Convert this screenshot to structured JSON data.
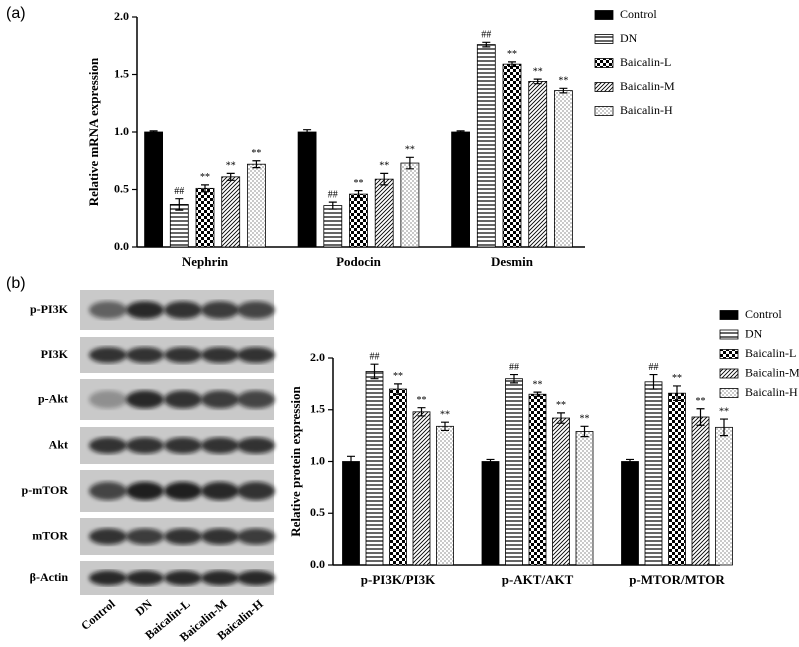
{
  "panel_labels": [
    "(a)",
    "(b)"
  ],
  "blot": {
    "proteins": [
      "p-PI3K",
      "PI3K",
      "p-Akt",
      "Akt",
      "p-mTOR",
      "mTOR",
      "β-Actin"
    ],
    "lanes": [
      "Control",
      "DN",
      "Baicalin-L",
      "Baicalin-M",
      "Baicalin-H"
    ]
  },
  "chart_data": [
    {
      "type": "bar",
      "y_label": "Relative mRNA expression",
      "categories": [
        "Nephrin",
        "Podocin",
        "Desmin"
      ],
      "ylim": [
        0,
        2
      ],
      "yticks": [
        {
          "value": 0,
          "label": "0.0"
        },
        0.5,
        {
          "value": 1,
          "label": "1.0"
        },
        1.5,
        {
          "value": 2,
          "label": "2.0"
        }
      ],
      "series": [
        {
          "name": "Control",
          "color": "#000000",
          "pattern": "solid",
          "values": [
            1.0,
            1.0,
            1.0
          ],
          "errors": [
            0.01,
            0.02,
            0.01
          ]
        },
        {
          "name": "DN",
          "color": "#000000",
          "pattern": "horizontal",
          "values": [
            0.37,
            0.36,
            1.76
          ],
          "errors": [
            0.05,
            0.03,
            0.02
          ],
          "annotations": [
            "##",
            "##",
            "##"
          ]
        },
        {
          "name": "Baicalin-L",
          "color": "#000000",
          "pattern": "checker",
          "values": [
            0.51,
            0.46,
            1.59
          ],
          "errors": [
            0.03,
            0.03,
            0.02
          ],
          "annotations": [
            "**",
            "**",
            "**"
          ]
        },
        {
          "name": "Baicalin-M",
          "color": "#000000",
          "pattern": "diagonal",
          "values": [
            0.61,
            0.59,
            1.44
          ],
          "errors": [
            0.03,
            0.05,
            0.02
          ],
          "annotations": [
            "**",
            "**",
            "**"
          ]
        },
        {
          "name": "Baicalin-H",
          "color": "#000000",
          "pattern": "dots",
          "values": [
            0.72,
            0.73,
            1.36
          ],
          "errors": [
            0.03,
            0.05,
            0.02
          ],
          "annotations": [
            "**",
            "**",
            "**"
          ]
        }
      ]
    },
    {
      "type": "bar",
      "y_label": "Relative protein expression",
      "categories": [
        "p-PI3K/PI3K",
        "p-AKT/AKT",
        "p-MTOR/MTOR"
      ],
      "ylim": [
        0,
        2
      ],
      "yticks": [
        {
          "value": 0,
          "label": "0.0"
        },
        0.5,
        {
          "value": 1,
          "label": "1.0"
        },
        1.5,
        {
          "value": 2,
          "label": "2.0"
        }
      ],
      "series": [
        {
          "name": "Control",
          "color": "#000000",
          "pattern": "solid",
          "values": [
            1.0,
            1.0,
            1.0
          ],
          "errors": [
            0.05,
            0.02,
            0.02
          ]
        },
        {
          "name": "DN",
          "color": "#000000",
          "pattern": "horizontal",
          "values": [
            1.87,
            1.8,
            1.77
          ],
          "errors": [
            0.07,
            0.04,
            0.07
          ],
          "annotations": [
            "##",
            "##",
            "##"
          ]
        },
        {
          "name": "Baicalin-L",
          "color": "#000000",
          "pattern": "checker",
          "values": [
            1.7,
            1.65,
            1.66
          ],
          "errors": [
            0.05,
            0.02,
            0.07
          ],
          "annotations": [
            "**",
            "**",
            "**"
          ]
        },
        {
          "name": "Baicalin-M",
          "color": "#000000",
          "pattern": "diagonal",
          "values": [
            1.48,
            1.42,
            1.43
          ],
          "errors": [
            0.04,
            0.05,
            0.08
          ],
          "annotations": [
            "**",
            "**",
            "**"
          ]
        },
        {
          "name": "Baicalin-H",
          "color": "#000000",
          "pattern": "dots",
          "values": [
            1.34,
            1.29,
            1.33
          ],
          "errors": [
            0.04,
            0.05,
            0.08
          ],
          "annotations": [
            "**",
            "**",
            "**"
          ]
        }
      ]
    }
  ]
}
